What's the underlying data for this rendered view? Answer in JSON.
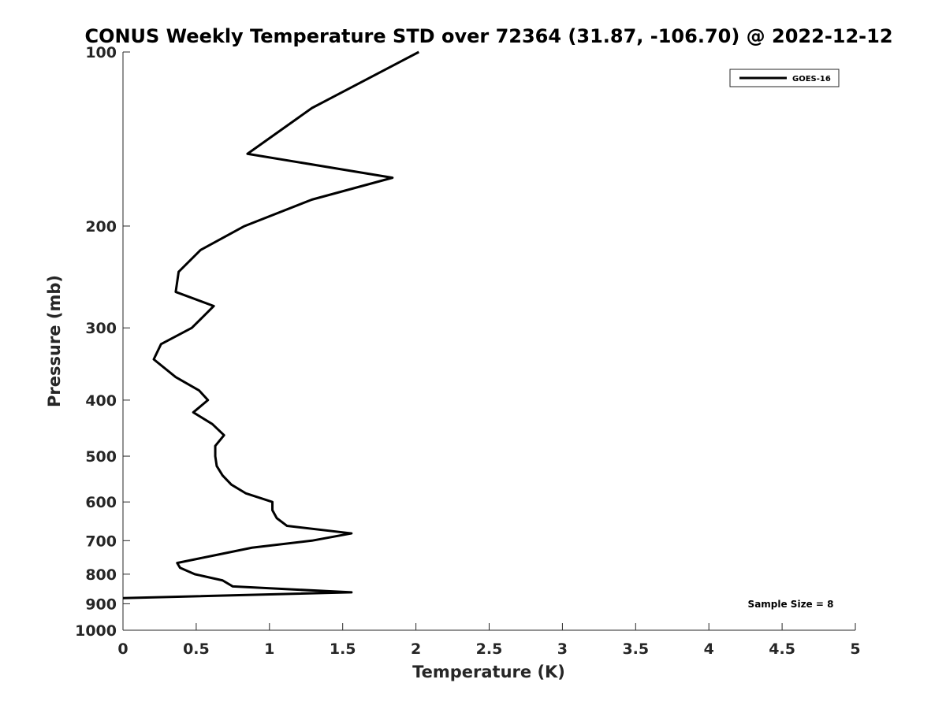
{
  "chart_data": {
    "type": "line",
    "title": "CONUS Weekly Temperature STD over 72364 (31.87, -106.70) @ 2022-12-12",
    "xlabel": "Temperature (K)",
    "ylabel": "Pressure (mb)",
    "xlim": [
      0,
      5
    ],
    "ylim": [
      100,
      1000
    ],
    "y_scale": "log",
    "y_reversed": true,
    "x_ticks": [
      "0",
      "0.5",
      "1",
      "1.5",
      "2",
      "2.5",
      "3",
      "3.5",
      "4",
      "4.5",
      "5"
    ],
    "y_ticks": [
      "100",
      "200",
      "300",
      "400",
      "500",
      "600",
      "700",
      "800",
      "900",
      "1000"
    ],
    "grid": false,
    "legend": {
      "position": "top-right"
    },
    "annotation": "Sample Size = 8",
    "series": [
      {
        "name": "GOES-16",
        "color": "#000000",
        "points": [
          {
            "x": 2.02,
            "y": 100
          },
          {
            "x": 1.29,
            "y": 125
          },
          {
            "x": 0.85,
            "y": 150
          },
          {
            "x": 1.84,
            "y": 165
          },
          {
            "x": 1.29,
            "y": 180
          },
          {
            "x": 0.83,
            "y": 200
          },
          {
            "x": 0.53,
            "y": 220
          },
          {
            "x": 0.38,
            "y": 240
          },
          {
            "x": 0.36,
            "y": 260
          },
          {
            "x": 0.62,
            "y": 275
          },
          {
            "x": 0.47,
            "y": 300
          },
          {
            "x": 0.26,
            "y": 320
          },
          {
            "x": 0.21,
            "y": 340
          },
          {
            "x": 0.36,
            "y": 365
          },
          {
            "x": 0.52,
            "y": 385
          },
          {
            "x": 0.58,
            "y": 400
          },
          {
            "x": 0.48,
            "y": 420
          },
          {
            "x": 0.61,
            "y": 440
          },
          {
            "x": 0.69,
            "y": 460
          },
          {
            "x": 0.63,
            "y": 480
          },
          {
            "x": 0.63,
            "y": 500
          },
          {
            "x": 0.64,
            "y": 520
          },
          {
            "x": 0.68,
            "y": 540
          },
          {
            "x": 0.74,
            "y": 560
          },
          {
            "x": 0.84,
            "y": 580
          },
          {
            "x": 1.02,
            "y": 600
          },
          {
            "x": 1.02,
            "y": 620
          },
          {
            "x": 1.05,
            "y": 640
          },
          {
            "x": 1.12,
            "y": 660
          },
          {
            "x": 1.56,
            "y": 680
          },
          {
            "x": 1.29,
            "y": 700
          },
          {
            "x": 0.88,
            "y": 720
          },
          {
            "x": 0.65,
            "y": 740
          },
          {
            "x": 0.37,
            "y": 765
          },
          {
            "x": 0.39,
            "y": 780
          },
          {
            "x": 0.49,
            "y": 800
          },
          {
            "x": 0.68,
            "y": 820
          },
          {
            "x": 0.75,
            "y": 840
          },
          {
            "x": 1.56,
            "y": 860
          },
          {
            "x": 0.0,
            "y": 880
          }
        ]
      }
    ]
  }
}
